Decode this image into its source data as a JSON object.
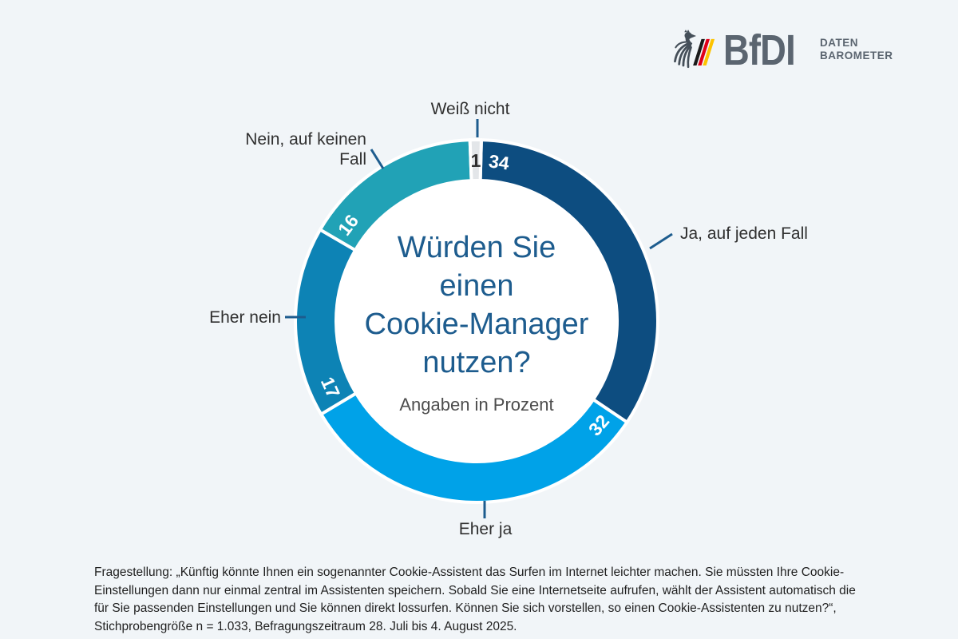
{
  "page": {
    "background": "#f1f5f8"
  },
  "logo": {
    "acronym": "BfDI",
    "wordmark_line1": "DATEN",
    "wordmark_line2": "BAROMETER",
    "text_color": "#5b6570",
    "eagle_color": "#454f59",
    "flag_colors": {
      "black": "#1a1a1a",
      "red": "#e10019",
      "gold": "#fdc300"
    }
  },
  "chart_data": {
    "type": "pie",
    "title": "Würden Sie einen Cookie-Manager nutzen?",
    "title_display": "Würden Sie\neinen\nCookie-Manager\nnutzen?",
    "subtitle": "Angaben in Prozent",
    "unit": "percent",
    "total": 100,
    "start_angle_deg": 1.5,
    "legend_position": "outside-callouts",
    "segments": [
      {
        "label": "Ja, auf jeden Fall",
        "value": 34,
        "color": "#0d4d80",
        "value_label_color": "#ffffff"
      },
      {
        "label": "Eher ja",
        "value": 32,
        "color": "#00a2e8",
        "value_label_color": "#ffffff"
      },
      {
        "label": "Eher nein",
        "value": 17,
        "color": "#0d83b5",
        "value_label_color": "#ffffff"
      },
      {
        "label": "Nein, auf keinen Fall",
        "value": 16,
        "color": "#21a2b6",
        "value_label_color": "#ffffff"
      },
      {
        "label": "Weiß nicht",
        "value": 1,
        "color": "#e3e6e9",
        "value_label_color": "#2e2e2e"
      }
    ],
    "callout_color": "#1d5c8e"
  },
  "callouts": {
    "weiss_nicht": "Weiß nicht",
    "nein": "Nein, auf keinen\nFall",
    "ja": "Ja, auf jeden Fall",
    "eher_nein": "Eher nein",
    "eher_ja": "Eher ja"
  },
  "footnote": {
    "text": "Fragestellung: „Künftig könnte Ihnen ein sogenannter Cookie-Assistent das Surfen im Internet leichter machen. Sie müssten Ihre Cookie-Einstellungen dann nur einmal zentral im Assistenten speichern. Sobald Sie eine Internetseite aufrufen, wählt der Assistent automatisch die für Sie passenden Einstellungen und Sie können direkt lossurfen. Können Sie sich vorstellen, so einen Cookie-Assistenten zu nutzen?“, Stichprobengröße n = 1.033, Befragungszeitraum 28. Juli bis 4. August 2025."
  }
}
